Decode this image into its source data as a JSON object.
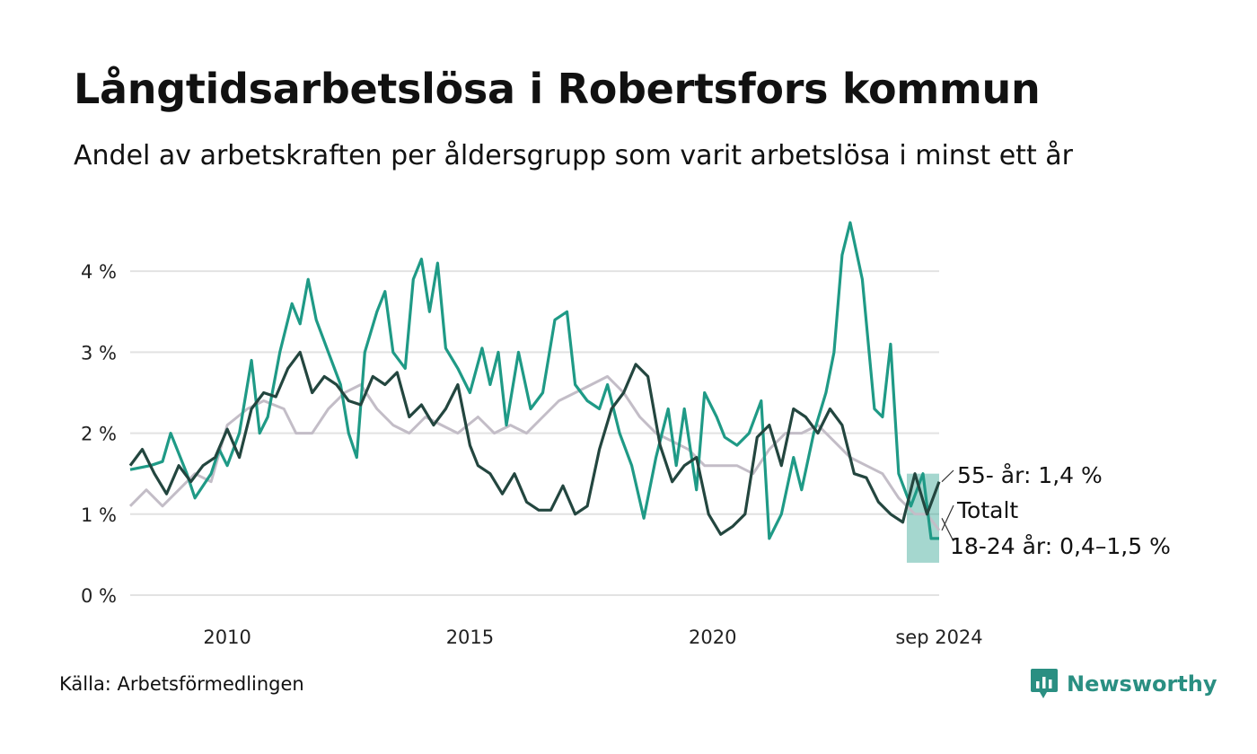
{
  "title": "Långtidsarbetslösa i Robertsfors kommun",
  "subtitle": "Andel av arbetskraften per åldersgrupp som varit arbetslösa i minst ett år",
  "source": "Källa: Arbetsförmedlingen",
  "brand": {
    "name": "Newsworthy",
    "icon": "newsworthy-chart-icon",
    "color": "#2a8f82"
  },
  "chart_data": {
    "type": "line",
    "x_range": [
      "2008-01",
      "2024-09"
    ],
    "x_ticks": [
      {
        "date": "2010-01",
        "label": "2010"
      },
      {
        "date": "2015-01",
        "label": "2015"
      },
      {
        "date": "2020-01",
        "label": "2020"
      },
      {
        "date": "2024-09",
        "label": "sep 2024"
      }
    ],
    "y_ticks": [
      {
        "value": 0,
        "label": "0 %"
      },
      {
        "value": 1,
        "label": "1 %"
      },
      {
        "value": 2,
        "label": "2 %"
      },
      {
        "value": 3,
        "label": "3 %"
      },
      {
        "value": 4,
        "label": "4 %"
      }
    ],
    "ylim": [
      0,
      4.8
    ],
    "grid": true,
    "series": [
      {
        "key": "total",
        "name": "Totalt",
        "color": "#c3bdc7",
        "points": [
          [
            "2008-01",
            1.1
          ],
          [
            "2008-05",
            1.3
          ],
          [
            "2008-09",
            1.1
          ],
          [
            "2009-01",
            1.3
          ],
          [
            "2009-05",
            1.5
          ],
          [
            "2009-09",
            1.4
          ],
          [
            "2010-01",
            2.1
          ],
          [
            "2010-06",
            2.3
          ],
          [
            "2010-10",
            2.4
          ],
          [
            "2011-03",
            2.3
          ],
          [
            "2011-06",
            2.0
          ],
          [
            "2011-10",
            2.0
          ],
          [
            "2012-02",
            2.3
          ],
          [
            "2012-06",
            2.5
          ],
          [
            "2012-10",
            2.6
          ],
          [
            "2013-02",
            2.3
          ],
          [
            "2013-06",
            2.1
          ],
          [
            "2013-10",
            2.0
          ],
          [
            "2014-02",
            2.2
          ],
          [
            "2014-06",
            2.1
          ],
          [
            "2014-10",
            2.0
          ],
          [
            "2015-03",
            2.2
          ],
          [
            "2015-07",
            2.0
          ],
          [
            "2015-11",
            2.1
          ],
          [
            "2016-03",
            2.0
          ],
          [
            "2016-07",
            2.2
          ],
          [
            "2016-11",
            2.4
          ],
          [
            "2017-03",
            2.5
          ],
          [
            "2017-07",
            2.6
          ],
          [
            "2017-11",
            2.7
          ],
          [
            "2018-03",
            2.5
          ],
          [
            "2018-07",
            2.2
          ],
          [
            "2018-11",
            2.0
          ],
          [
            "2019-03",
            1.9
          ],
          [
            "2019-07",
            1.8
          ],
          [
            "2019-11",
            1.6
          ],
          [
            "2020-03",
            1.6
          ],
          [
            "2020-07",
            1.6
          ],
          [
            "2020-11",
            1.5
          ],
          [
            "2021-03",
            1.8
          ],
          [
            "2021-07",
            2.0
          ],
          [
            "2021-11",
            2.0
          ],
          [
            "2022-03",
            2.1
          ],
          [
            "2022-07",
            1.9
          ],
          [
            "2022-11",
            1.7
          ],
          [
            "2023-03",
            1.6
          ],
          [
            "2023-07",
            1.5
          ],
          [
            "2023-11",
            1.2
          ],
          [
            "2024-03",
            1.0
          ],
          [
            "2024-06",
            1.0
          ],
          [
            "2024-09",
            0.8
          ]
        ]
      },
      {
        "key": "youth",
        "name": "18-24 år",
        "color": "#1f9a86",
        "points": [
          [
            "2008-01",
            1.55
          ],
          [
            "2008-06",
            1.6
          ],
          [
            "2008-09",
            1.65
          ],
          [
            "2008-11",
            2.0
          ],
          [
            "2009-03",
            1.5
          ],
          [
            "2009-05",
            1.2
          ],
          [
            "2009-09",
            1.5
          ],
          [
            "2009-11",
            1.8
          ],
          [
            "2010-01",
            1.6
          ],
          [
            "2010-04",
            2.0
          ],
          [
            "2010-07",
            2.9
          ],
          [
            "2010-09",
            2.0
          ],
          [
            "2010-11",
            2.2
          ],
          [
            "2011-02",
            3.0
          ],
          [
            "2011-05",
            3.6
          ],
          [
            "2011-07",
            3.35
          ],
          [
            "2011-09",
            3.9
          ],
          [
            "2011-11",
            3.4
          ],
          [
            "2012-02",
            3.0
          ],
          [
            "2012-05",
            2.6
          ],
          [
            "2012-07",
            2.0
          ],
          [
            "2012-09",
            1.7
          ],
          [
            "2012-11",
            3.0
          ],
          [
            "2013-02",
            3.5
          ],
          [
            "2013-04",
            3.75
          ],
          [
            "2013-06",
            3.0
          ],
          [
            "2013-09",
            2.8
          ],
          [
            "2013-11",
            3.9
          ],
          [
            "2014-01",
            4.15
          ],
          [
            "2014-03",
            3.5
          ],
          [
            "2014-05",
            4.1
          ],
          [
            "2014-07",
            3.05
          ],
          [
            "2014-10",
            2.8
          ],
          [
            "2015-01",
            2.5
          ],
          [
            "2015-04",
            3.05
          ],
          [
            "2015-06",
            2.6
          ],
          [
            "2015-08",
            3.0
          ],
          [
            "2015-10",
            2.1
          ],
          [
            "2016-01",
            3.0
          ],
          [
            "2016-04",
            2.3
          ],
          [
            "2016-07",
            2.5
          ],
          [
            "2016-10",
            3.4
          ],
          [
            "2017-01",
            3.5
          ],
          [
            "2017-03",
            2.6
          ],
          [
            "2017-06",
            2.4
          ],
          [
            "2017-09",
            2.3
          ],
          [
            "2017-11",
            2.6
          ],
          [
            "2018-02",
            2.0
          ],
          [
            "2018-05",
            1.6
          ],
          [
            "2018-08",
            0.95
          ],
          [
            "2018-11",
            1.7
          ],
          [
            "2019-02",
            2.3
          ],
          [
            "2019-04",
            1.6
          ],
          [
            "2019-06",
            2.3
          ],
          [
            "2019-09",
            1.3
          ],
          [
            "2019-11",
            2.5
          ],
          [
            "2020-02",
            2.2
          ],
          [
            "2020-04",
            1.95
          ],
          [
            "2020-07",
            1.85
          ],
          [
            "2020-10",
            2.0
          ],
          [
            "2021-01",
            2.4
          ],
          [
            "2021-03",
            0.7
          ],
          [
            "2021-06",
            1.0
          ],
          [
            "2021-09",
            1.7
          ],
          [
            "2021-11",
            1.3
          ],
          [
            "2022-02",
            2.0
          ],
          [
            "2022-05",
            2.5
          ],
          [
            "2022-07",
            3.0
          ],
          [
            "2022-09",
            4.2
          ],
          [
            "2022-11",
            4.6
          ],
          [
            "2023-02",
            3.9
          ],
          [
            "2023-05",
            2.3
          ],
          [
            "2023-07",
            2.2
          ],
          [
            "2023-09",
            3.1
          ],
          [
            "2023-11",
            1.5
          ],
          [
            "2024-02",
            1.1
          ],
          [
            "2024-05",
            1.5
          ],
          [
            "2024-07",
            0.7
          ],
          [
            "2024-09",
            0.7
          ]
        ]
      },
      {
        "key": "senior",
        "name": "55- år",
        "color": "#23463f",
        "points": [
          [
            "2008-01",
            1.6
          ],
          [
            "2008-04",
            1.8
          ],
          [
            "2008-07",
            1.5
          ],
          [
            "2008-10",
            1.25
          ],
          [
            "2009-01",
            1.6
          ],
          [
            "2009-04",
            1.4
          ],
          [
            "2009-07",
            1.6
          ],
          [
            "2009-10",
            1.7
          ],
          [
            "2010-01",
            2.05
          ],
          [
            "2010-04",
            1.7
          ],
          [
            "2010-07",
            2.3
          ],
          [
            "2010-10",
            2.5
          ],
          [
            "2011-01",
            2.45
          ],
          [
            "2011-04",
            2.8
          ],
          [
            "2011-07",
            3.0
          ],
          [
            "2011-10",
            2.5
          ],
          [
            "2012-01",
            2.7
          ],
          [
            "2012-04",
            2.6
          ],
          [
            "2012-07",
            2.4
          ],
          [
            "2012-10",
            2.35
          ],
          [
            "2013-01",
            2.7
          ],
          [
            "2013-04",
            2.6
          ],
          [
            "2013-07",
            2.75
          ],
          [
            "2013-10",
            2.2
          ],
          [
            "2014-01",
            2.35
          ],
          [
            "2014-04",
            2.1
          ],
          [
            "2014-07",
            2.3
          ],
          [
            "2014-10",
            2.6
          ],
          [
            "2015-01",
            1.85
          ],
          [
            "2015-03",
            1.6
          ],
          [
            "2015-06",
            1.5
          ],
          [
            "2015-09",
            1.25
          ],
          [
            "2015-12",
            1.5
          ],
          [
            "2016-03",
            1.15
          ],
          [
            "2016-06",
            1.05
          ],
          [
            "2016-09",
            1.05
          ],
          [
            "2016-12",
            1.35
          ],
          [
            "2017-03",
            1.0
          ],
          [
            "2017-06",
            1.1
          ],
          [
            "2017-09",
            1.8
          ],
          [
            "2017-12",
            2.3
          ],
          [
            "2018-03",
            2.5
          ],
          [
            "2018-06",
            2.85
          ],
          [
            "2018-09",
            2.7
          ],
          [
            "2018-12",
            1.85
          ],
          [
            "2019-03",
            1.4
          ],
          [
            "2019-06",
            1.6
          ],
          [
            "2019-09",
            1.7
          ],
          [
            "2019-12",
            1.0
          ],
          [
            "2020-03",
            0.75
          ],
          [
            "2020-06",
            0.85
          ],
          [
            "2020-09",
            1.0
          ],
          [
            "2020-12",
            1.95
          ],
          [
            "2021-03",
            2.1
          ],
          [
            "2021-06",
            1.6
          ],
          [
            "2021-09",
            2.3
          ],
          [
            "2021-12",
            2.2
          ],
          [
            "2022-03",
            2.0
          ],
          [
            "2022-06",
            2.3
          ],
          [
            "2022-09",
            2.1
          ],
          [
            "2022-12",
            1.5
          ],
          [
            "2023-03",
            1.45
          ],
          [
            "2023-06",
            1.15
          ],
          [
            "2023-09",
            1.0
          ],
          [
            "2023-12",
            0.9
          ],
          [
            "2024-03",
            1.5
          ],
          [
            "2024-06",
            1.0
          ],
          [
            "2024-09",
            1.4
          ]
        ]
      }
    ],
    "range_band": {
      "series": "youth",
      "from": "2024-01",
      "to": "2024-09",
      "low": 0.4,
      "high": 1.5
    },
    "labels": [
      {
        "series": "senior",
        "text": "55- år: 1,4 %"
      },
      {
        "series": "total",
        "text": "Totalt"
      },
      {
        "series": "youth",
        "text": "18-24 år: 0,4–1,5 %"
      }
    ]
  }
}
